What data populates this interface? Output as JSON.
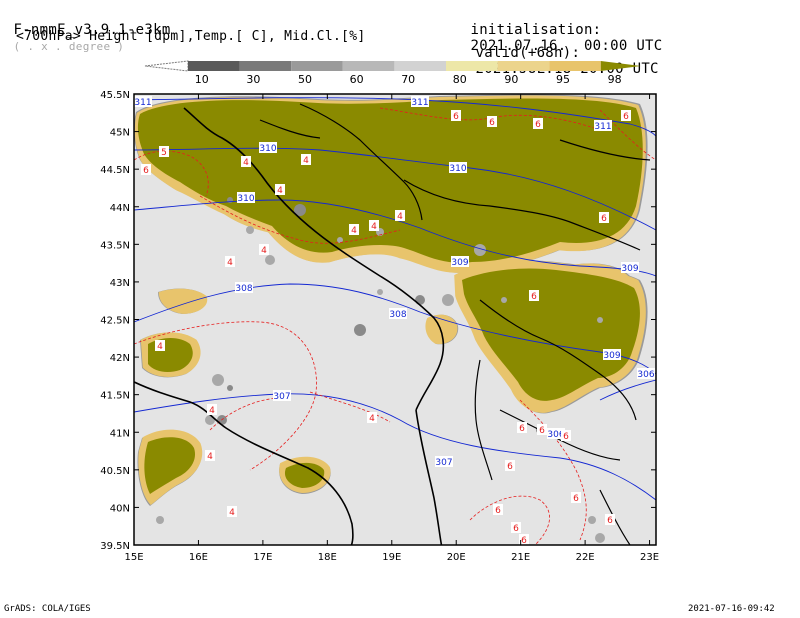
{
  "header": {
    "model": "F-nmmE_v3.9.1-e3km",
    "model_unit": "( . x . degree )",
    "fields": "<700hPa> Height [dpm],Temp.[ C], Mid.Cl.[%]",
    "init_label": "initialisation:",
    "init_value": "2021.07.16.  00:00 UTC",
    "valid_label": "valid(+68h):",
    "valid_value": "2021.JUL.18 20:00 UTC"
  },
  "colorbar": {
    "levels": [
      "10",
      "30",
      "50",
      "60",
      "70",
      "80",
      "90",
      "95",
      "98"
    ],
    "colors": [
      "#5a5a5a",
      "#7a7a7a",
      "#9a9a9a",
      "#b8b8b8",
      "#d2d2d2",
      "#ede7a8",
      "#ecd48c",
      "#e8c46c",
      "#e3b23a",
      "#8a8a00"
    ]
  },
  "axes": {
    "lon_labels": [
      "15E",
      "16E",
      "17E",
      "18E",
      "19E",
      "20E",
      "21E",
      "22E",
      "23E"
    ],
    "lat_labels": [
      "45.5N",
      "45N",
      "44.5N",
      "44N",
      "43.5N",
      "43N",
      "42.5N",
      "42N",
      "41.5N",
      "41N",
      "40.5N",
      "40N",
      "39.5N"
    ]
  },
  "contours": {
    "height_labels": [
      "311",
      "311",
      "311",
      "310",
      "310",
      "310",
      "309",
      "309",
      "309",
      "308",
      "308",
      "307",
      "307",
      "306",
      "306"
    ],
    "temp_labels": [
      "5",
      "6",
      "6",
      "6",
      "6",
      "6",
      "6",
      "6",
      "6",
      "6",
      "6",
      "6",
      "6",
      "6",
      "4",
      "4",
      "4",
      "4",
      "4",
      "4",
      "4",
      "4",
      "4",
      "4",
      "4",
      "4",
      "4",
      "6",
      "6",
      "6"
    ]
  },
  "colors": {
    "height_contour": "#1428d2",
    "temp_contour": "#e61e1e",
    "coast": "#000000",
    "background": "#e4e4e4",
    "cloud_dense": "#8a8a00"
  },
  "footer": {
    "left": "GrADS: COLA/IGES",
    "right": "2021-07-16-09:42"
  }
}
